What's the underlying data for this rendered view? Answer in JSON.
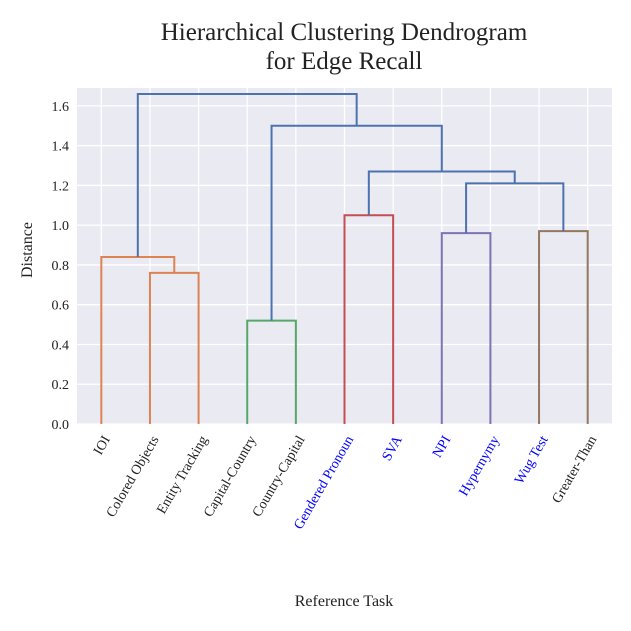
{
  "chart_data": {
    "type": "dendrogram",
    "title": [
      "Hierarchical Clustering Dendrogram",
      "for Edge Recall"
    ],
    "xlabel": "Reference Task",
    "ylabel": "Distance",
    "categories": [
      "IOI",
      "Colored Objects",
      "Entity Tracking",
      "Capital-Country",
      "Country-Capital",
      "Gendered Pronoun",
      "SVA",
      "NPI",
      "Hypernymy",
      "Wug Test",
      "Greater-Than"
    ],
    "label_colors": [
      "#222222",
      "#222222",
      "#222222",
      "#222222",
      "#222222",
      "#0000ff",
      "#0000ff",
      "#0000ff",
      "#0000ff",
      "#0000ff",
      "#222222"
    ],
    "merges": [
      {
        "children": [
          1,
          2
        ],
        "height": 0.76,
        "color": "#dd8452"
      },
      {
        "children": [
          0,
          11
        ],
        "height": 0.84,
        "color": "#dd8452"
      },
      {
        "children": [
          3,
          4
        ],
        "height": 0.52,
        "color": "#55a868"
      },
      {
        "children": [
          5,
          6
        ],
        "height": 1.05,
        "color": "#c44e52"
      },
      {
        "children": [
          7,
          8
        ],
        "height": 0.96,
        "color": "#8172b3"
      },
      {
        "children": [
          9,
          10
        ],
        "height": 0.97,
        "color": "#937860"
      },
      {
        "children": [
          15,
          16
        ],
        "height": 1.21,
        "color": "#4c72b0"
      },
      {
        "children": [
          14,
          17
        ],
        "height": 1.27,
        "color": "#4c72b0"
      },
      {
        "children": [
          13,
          18
        ],
        "height": 1.5,
        "color": "#4c72b0"
      },
      {
        "children": [
          12,
          19
        ],
        "height": 1.66,
        "color": "#4c72b0"
      }
    ],
    "ylim": [
      0,
      1.69
    ],
    "yticks": [
      {
        "value": 0,
        "label": "0.0"
      },
      {
        "value": 0.2,
        "label": "0.2"
      },
      {
        "value": 0.4,
        "label": "0.4"
      },
      {
        "value": 0.6,
        "label": "0.6"
      },
      {
        "value": 0.8,
        "label": "0.8"
      },
      {
        "value": 1,
        "label": "1.0"
      },
      {
        "value": 1.2,
        "label": "1.2"
      },
      {
        "value": 1.4,
        "label": "1.4"
      },
      {
        "value": 1.6,
        "label": "1.6"
      }
    ],
    "grid": true
  }
}
